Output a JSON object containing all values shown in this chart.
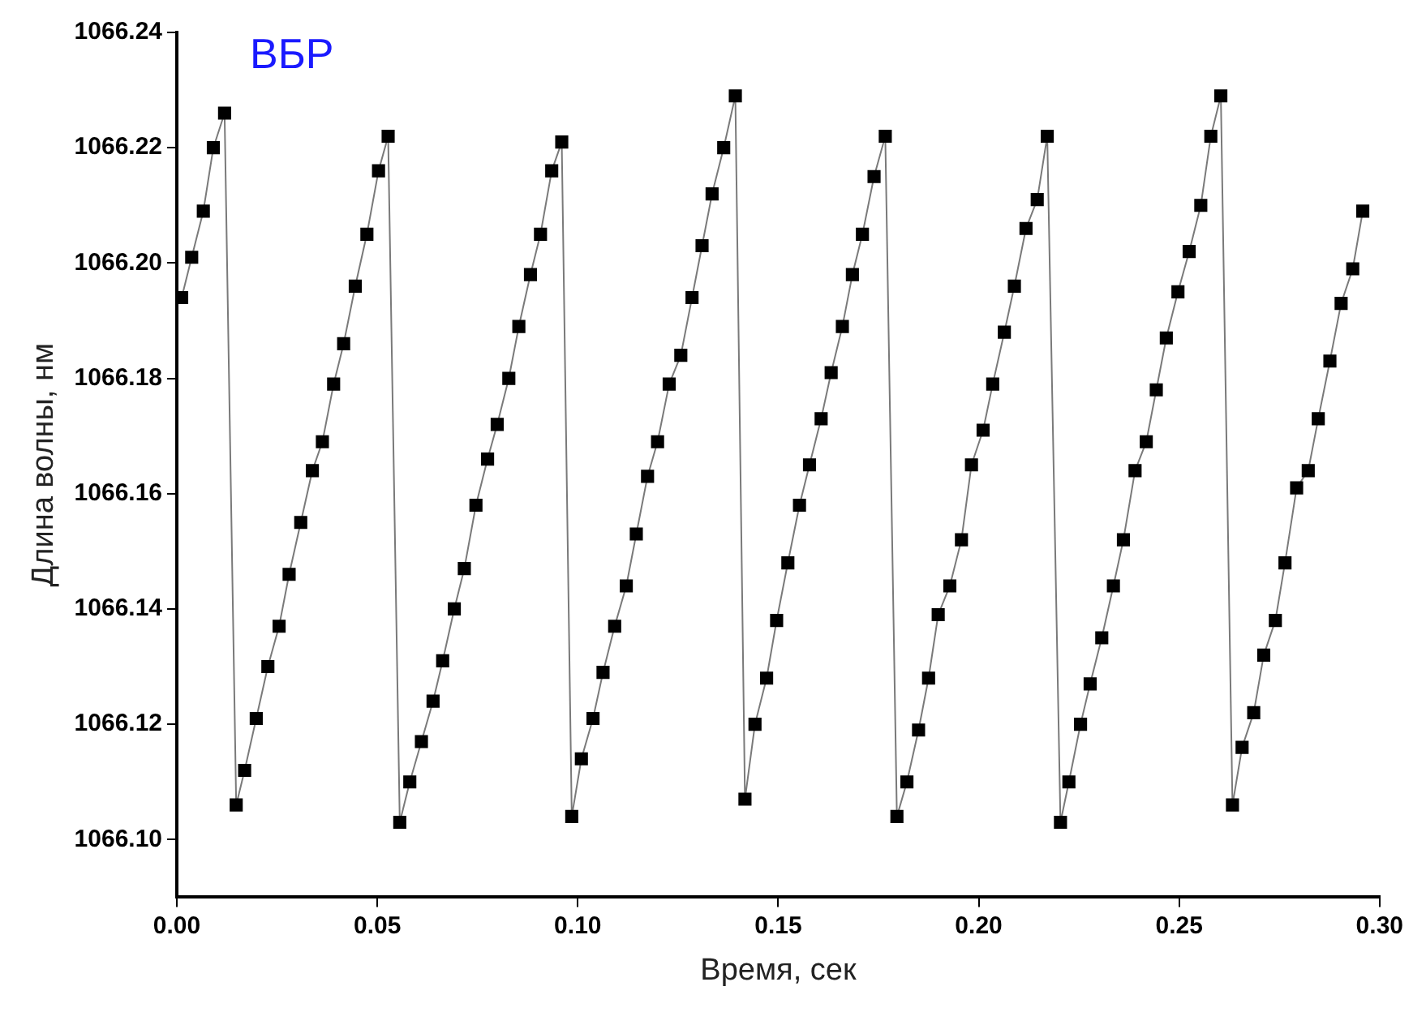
{
  "chart_data": {
    "type": "line",
    "xlabel": "Время, сек",
    "ylabel": "Длина волны, нм",
    "annotations": [
      "ВБР"
    ],
    "xlim": [
      0,
      0.3
    ],
    "xticks": [
      {
        "value": 0,
        "label": "0.00"
      },
      {
        "value": 0.05,
        "label": "0.05"
      },
      {
        "value": 0.1,
        "label": "0.10"
      },
      {
        "value": 0.15,
        "label": "0.15"
      },
      {
        "value": 0.2,
        "label": "0.20"
      },
      {
        "value": 0.25,
        "label": "0.25"
      },
      {
        "value": 0.3,
        "label": "0.30"
      }
    ],
    "ylim": [
      1066.09,
      1066.24
    ],
    "yticks": [
      {
        "value": 1066.1,
        "label": "1066.10"
      },
      {
        "value": 1066.12,
        "label": "1066.12"
      },
      {
        "value": 1066.14,
        "label": "1066.14"
      },
      {
        "value": 1066.16,
        "label": "1066.16"
      },
      {
        "value": 1066.18,
        "label": "1066.18"
      },
      {
        "value": 1066.2,
        "label": "1066.20"
      },
      {
        "value": 1066.22,
        "label": "1066.22"
      },
      {
        "value": 1066.24,
        "label": "1066.24"
      }
    ],
    "grid": false,
    "legend": false,
    "marker": "square",
    "line_style": "solid",
    "series": [
      {
        "color": "#000000",
        "x": [
          0.0012,
          0.0037,
          0.0066,
          0.0091,
          0.0119,
          0.0148,
          0.0169,
          0.0198,
          0.0227,
          0.0255,
          0.028,
          0.0309,
          0.0338,
          0.0363,
          0.0391,
          0.0416,
          0.0445,
          0.0474,
          0.0503,
          0.0527,
          0.0556,
          0.0581,
          0.061,
          0.0639,
          0.0663,
          0.0692,
          0.0717,
          0.0746,
          0.0775,
          0.0799,
          0.0828,
          0.0853,
          0.0882,
          0.0907,
          0.0935,
          0.096,
          0.0985,
          0.1009,
          0.1038,
          0.1063,
          0.1092,
          0.1121,
          0.1146,
          0.1174,
          0.1199,
          0.1228,
          0.1257,
          0.1285,
          0.131,
          0.1335,
          0.1364,
          0.1393,
          0.1417,
          0.1442,
          0.1471,
          0.1496,
          0.1524,
          0.1553,
          0.1578,
          0.1607,
          0.1632,
          0.166,
          0.1685,
          0.171,
          0.1739,
          0.1767,
          0.1796,
          0.1821,
          0.185,
          0.1875,
          0.1899,
          0.1928,
          0.1957,
          0.1982,
          0.2011,
          0.2035,
          0.2064,
          0.2089,
          0.2118,
          0.2146,
          0.2171,
          0.2204,
          0.2225,
          0.2254,
          0.2278,
          0.2307,
          0.2336,
          0.2361,
          0.239,
          0.2418,
          0.2443,
          0.2468,
          0.2497,
          0.2525,
          0.2554,
          0.2579,
          0.2604,
          0.2633,
          0.2657,
          0.2686,
          0.2711,
          0.274,
          0.2764,
          0.2793,
          0.2822,
          0.2847,
          0.2876,
          0.2904,
          0.2933,
          0.2958
        ],
        "values": [
          1066.194,
          1066.201,
          1066.209,
          1066.22,
          1066.226,
          1066.106,
          1066.112,
          1066.121,
          1066.13,
          1066.137,
          1066.146,
          1066.155,
          1066.164,
          1066.169,
          1066.179,
          1066.186,
          1066.196,
          1066.205,
          1066.216,
          1066.222,
          1066.103,
          1066.11,
          1066.117,
          1066.124,
          1066.131,
          1066.14,
          1066.147,
          1066.158,
          1066.166,
          1066.172,
          1066.18,
          1066.189,
          1066.198,
          1066.205,
          1066.216,
          1066.221,
          1066.104,
          1066.114,
          1066.121,
          1066.129,
          1066.137,
          1066.144,
          1066.153,
          1066.163,
          1066.169,
          1066.179,
          1066.184,
          1066.194,
          1066.203,
          1066.212,
          1066.22,
          1066.229,
          1066.107,
          1066.12,
          1066.128,
          1066.138,
          1066.148,
          1066.158,
          1066.165,
          1066.173,
          1066.181,
          1066.189,
          1066.198,
          1066.205,
          1066.215,
          1066.222,
          1066.104,
          1066.11,
          1066.119,
          1066.128,
          1066.139,
          1066.144,
          1066.152,
          1066.165,
          1066.171,
          1066.179,
          1066.188,
          1066.196,
          1066.206,
          1066.211,
          1066.222,
          1066.103,
          1066.11,
          1066.12,
          1066.127,
          1066.135,
          1066.144,
          1066.152,
          1066.164,
          1066.169,
          1066.178,
          1066.187,
          1066.195,
          1066.202,
          1066.21,
          1066.222,
          1066.229,
          1066.106,
          1066.116,
          1066.122,
          1066.132,
          1066.138,
          1066.148,
          1066.161,
          1066.164,
          1066.173,
          1066.183,
          1066.193,
          1066.199,
          1066.209
        ]
      }
    ]
  }
}
